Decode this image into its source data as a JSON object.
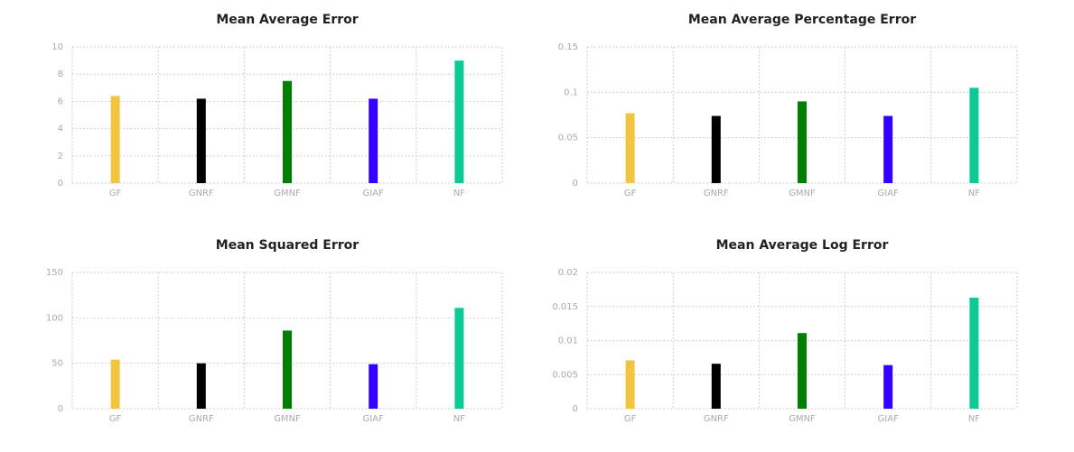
{
  "colors": {
    "GF": "#f2c440",
    "GNRF": "#000000",
    "GMNF": "#008000",
    "GIAF": "#3300ff",
    "NF": "#0cc995",
    "grid": "#cfcfcf",
    "tick_text": "#aaaaaa",
    "title_text": "#222222"
  },
  "chart_data": [
    {
      "type": "bar",
      "title": "Mean Average Error",
      "categories": [
        "GF",
        "GNRF",
        "GMNF",
        "GIAF",
        "NF"
      ],
      "values": [
        6.4,
        6.2,
        7.5,
        6.2,
        9.0
      ],
      "ylim": [
        0,
        10
      ],
      "yticks": [
        0,
        2,
        4,
        6,
        8,
        10
      ],
      "ytick_labels": [
        "0",
        "2",
        "4",
        "6",
        "8",
        "10"
      ],
      "grid": true
    },
    {
      "type": "bar",
      "title": "Mean Average Percentage Error",
      "categories": [
        "GF",
        "GNRF",
        "GMNF",
        "GIAF",
        "NF"
      ],
      "values": [
        0.077,
        0.074,
        0.09,
        0.074,
        0.105
      ],
      "ylim": [
        0,
        0.15
      ],
      "yticks": [
        0,
        0.05,
        0.1,
        0.15
      ],
      "ytick_labels": [
        "0",
        "0.05",
        "0.1",
        "0.15"
      ],
      "grid": true
    },
    {
      "type": "bar",
      "title": "Mean Squared Error",
      "categories": [
        "GF",
        "GNRF",
        "GMNF",
        "GIAF",
        "NF"
      ],
      "values": [
        54,
        50,
        86,
        49,
        111
      ],
      "ylim": [
        0,
        150
      ],
      "yticks": [
        0,
        50,
        100,
        150
      ],
      "ytick_labels": [
        "0",
        "50",
        "100",
        "150"
      ],
      "grid": true
    },
    {
      "type": "bar",
      "title": "Mean Average Log Error",
      "categories": [
        "GF",
        "GNRF",
        "GMNF",
        "GIAF",
        "NF"
      ],
      "values": [
        0.0071,
        0.0066,
        0.0111,
        0.0064,
        0.0163
      ],
      "ylim": [
        0,
        0.02
      ],
      "yticks": [
        0,
        0.005,
        0.01,
        0.015,
        0.02
      ],
      "ytick_labels": [
        "0",
        "0.005",
        "0.01",
        "0.015",
        "0.02"
      ],
      "grid": true
    }
  ]
}
